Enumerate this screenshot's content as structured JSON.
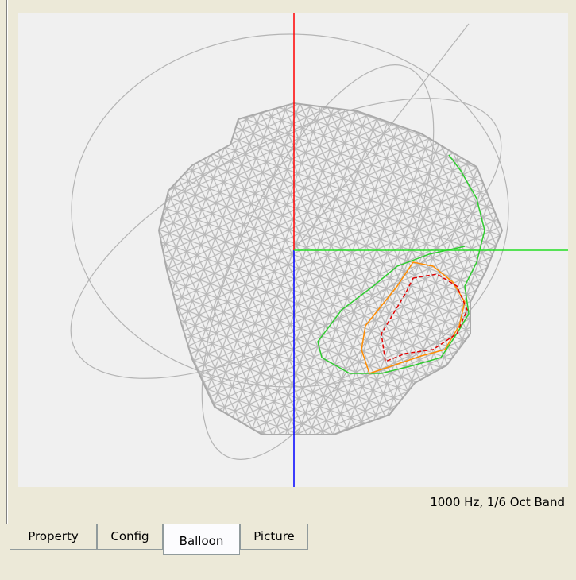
{
  "status": "1000 Hz, 1/6 Oct Band",
  "tabs": [
    "Property",
    "Config",
    "Balloon",
    "Picture"
  ]
}
